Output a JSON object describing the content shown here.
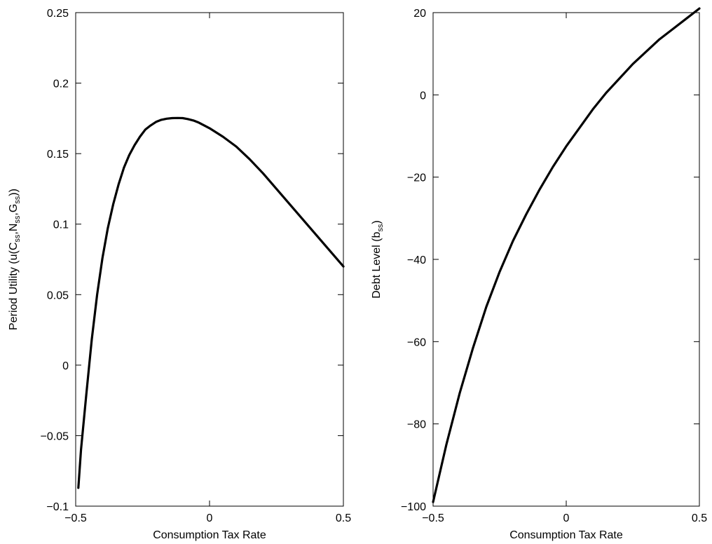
{
  "chart_data": [
    {
      "type": "line",
      "xlabel": "Consumption Tax Rate",
      "ylabel": {
        "main": "Period Utility (u(C",
        "sub1": "ss",
        "sep1": ",N",
        "sub2": "ss",
        "sep2": ",G",
        "sub3": "ss",
        "end": "))"
      },
      "xlim": [
        -0.5,
        0.5
      ],
      "ylim": [
        -0.1,
        0.25
      ],
      "xticks": [
        -0.5,
        0,
        0.5
      ],
      "xtick_labels": [
        "−0.5",
        "0",
        "0.5"
      ],
      "yticks": [
        -0.1,
        -0.05,
        0,
        0.05,
        0.1,
        0.15,
        0.2,
        0.25
      ],
      "ytick_labels": [
        "−0.1",
        "−0.05",
        "0",
        "0.05",
        "0.1",
        "0.15",
        "0.2",
        "0.25"
      ],
      "grid": false,
      "series": [
        {
          "x": [
            -0.49,
            -0.48,
            -0.46,
            -0.44,
            -0.42,
            -0.4,
            -0.38,
            -0.36,
            -0.34,
            -0.32,
            -0.3,
            -0.28,
            -0.26,
            -0.24,
            -0.22,
            -0.2,
            -0.18,
            -0.16,
            -0.14,
            -0.12,
            -0.1,
            -0.08,
            -0.06,
            -0.04,
            -0.02,
            0.0,
            0.05,
            0.1,
            0.15,
            0.2,
            0.25,
            0.3,
            0.35,
            0.4,
            0.45,
            0.5
          ],
          "y": [
            -0.087,
            -0.06,
            -0.02,
            0.018,
            0.05,
            0.076,
            0.097,
            0.114,
            0.128,
            0.14,
            0.149,
            0.156,
            0.162,
            0.167,
            0.17,
            0.1725,
            0.174,
            0.1748,
            0.1752,
            0.1753,
            0.1752,
            0.1745,
            0.1735,
            0.172,
            0.17,
            0.168,
            0.162,
            0.155,
            0.146,
            0.136,
            0.125,
            0.114,
            0.103,
            0.092,
            0.081,
            0.07
          ]
        }
      ]
    },
    {
      "type": "line",
      "xlabel": "Consumption Tax Rate",
      "ylabel": {
        "main": "Debt Level (b",
        "sub1": "ss",
        "end": ")"
      },
      "xlim": [
        -0.5,
        0.5
      ],
      "ylim": [
        -100,
        20
      ],
      "xticks": [
        -0.5,
        0,
        0.5
      ],
      "xtick_labels": [
        "−0.5",
        "0",
        "0.5"
      ],
      "yticks": [
        -100,
        -80,
        -60,
        -40,
        -20,
        0,
        20
      ],
      "ytick_labels": [
        "−100",
        "−80",
        "−60",
        "−40",
        "−20",
        "0",
        "20"
      ],
      "grid": false,
      "series": [
        {
          "x": [
            -0.5,
            -0.45,
            -0.4,
            -0.35,
            -0.3,
            -0.25,
            -0.2,
            -0.15,
            -0.1,
            -0.05,
            0.0,
            0.05,
            0.1,
            0.15,
            0.2,
            0.25,
            0.3,
            0.35,
            0.4,
            0.45,
            0.5
          ],
          "y": [
            -99,
            -85,
            -72.5,
            -61.5,
            -51.5,
            -43,
            -35.5,
            -29,
            -23,
            -17.5,
            -12.5,
            -8,
            -3.5,
            0.5,
            4,
            7.5,
            10.5,
            13.5,
            16,
            18.5,
            21
          ]
        }
      ]
    }
  ]
}
